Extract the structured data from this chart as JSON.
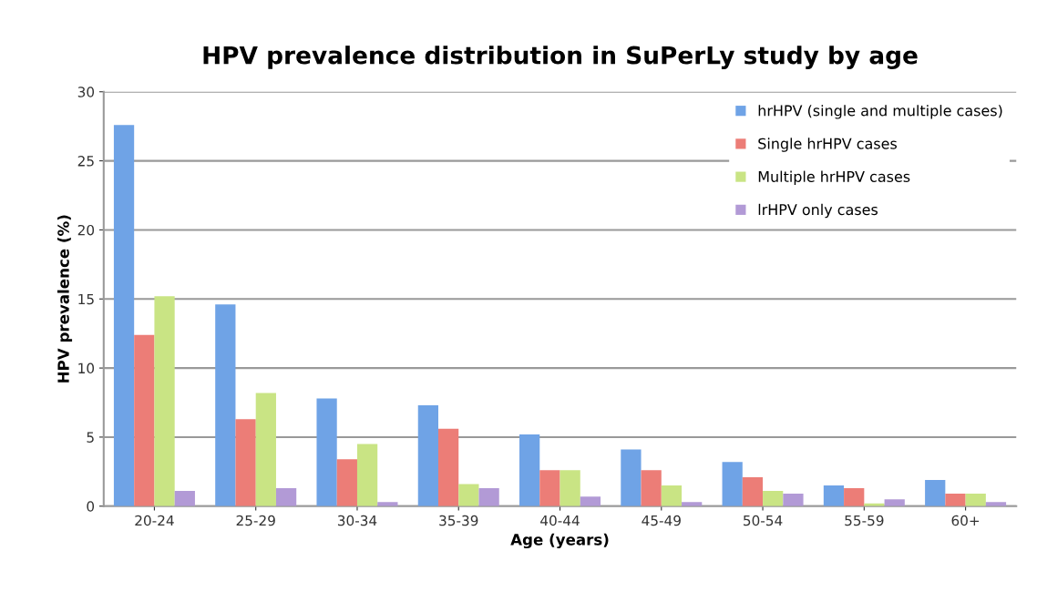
{
  "chart_data": {
    "type": "bar",
    "title": "HPV prevalence distribution in SuPerLy study by age",
    "xlabel": "Age (years)",
    "ylabel": "HPV prevalence (%)",
    "categories": [
      "20-24",
      "25-29",
      "30-34",
      "35-39",
      "40-44",
      "45-49",
      "50-54",
      "55-59",
      "60+"
    ],
    "series": [
      {
        "name": "hrHPV (single and multiple cases)",
        "color": "#6fa3e6",
        "values": [
          27.6,
          14.6,
          7.8,
          7.3,
          5.2,
          4.1,
          3.2,
          1.5,
          1.9
        ]
      },
      {
        "name": "Single hrHPV cases",
        "color": "#ec7d77",
        "values": [
          12.4,
          6.3,
          3.4,
          5.6,
          2.6,
          2.6,
          2.1,
          1.3,
          0.9
        ]
      },
      {
        "name": "Multiple hrHPV cases",
        "color": "#c9e484",
        "values": [
          15.2,
          8.2,
          4.5,
          1.6,
          2.6,
          1.5,
          1.1,
          0.2,
          0.9
        ]
      },
      {
        "name": "lrHPV only cases",
        "color": "#b29ad6",
        "values": [
          1.1,
          1.3,
          0.3,
          1.3,
          0.7,
          0.3,
          0.9,
          0.5,
          0.3
        ]
      }
    ],
    "ylim": [
      0,
      30
    ],
    "yticks": [
      0,
      5,
      10,
      15,
      20,
      25,
      30
    ],
    "grid": "y",
    "legend": "top right"
  }
}
